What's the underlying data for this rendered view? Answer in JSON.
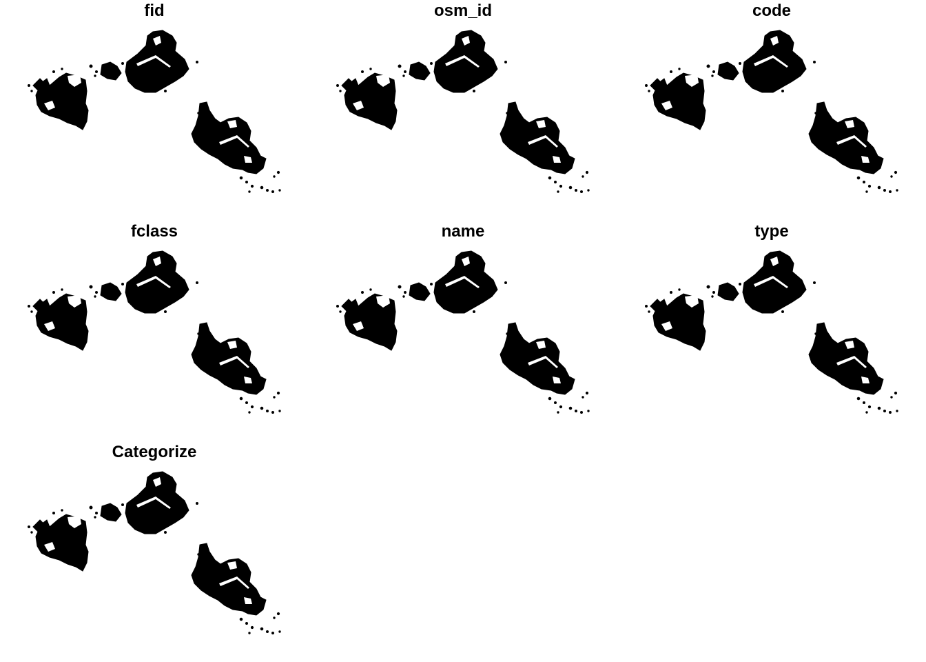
{
  "panels": [
    {
      "title": "fid"
    },
    {
      "title": "osm_id"
    },
    {
      "title": "code"
    },
    {
      "title": "fclass"
    },
    {
      "title": "name"
    },
    {
      "title": "type"
    },
    {
      "title": "Categorize"
    }
  ],
  "colors": {
    "background": "#ffffff",
    "feature_fill": "#000000",
    "title_text": "#000000"
  }
}
